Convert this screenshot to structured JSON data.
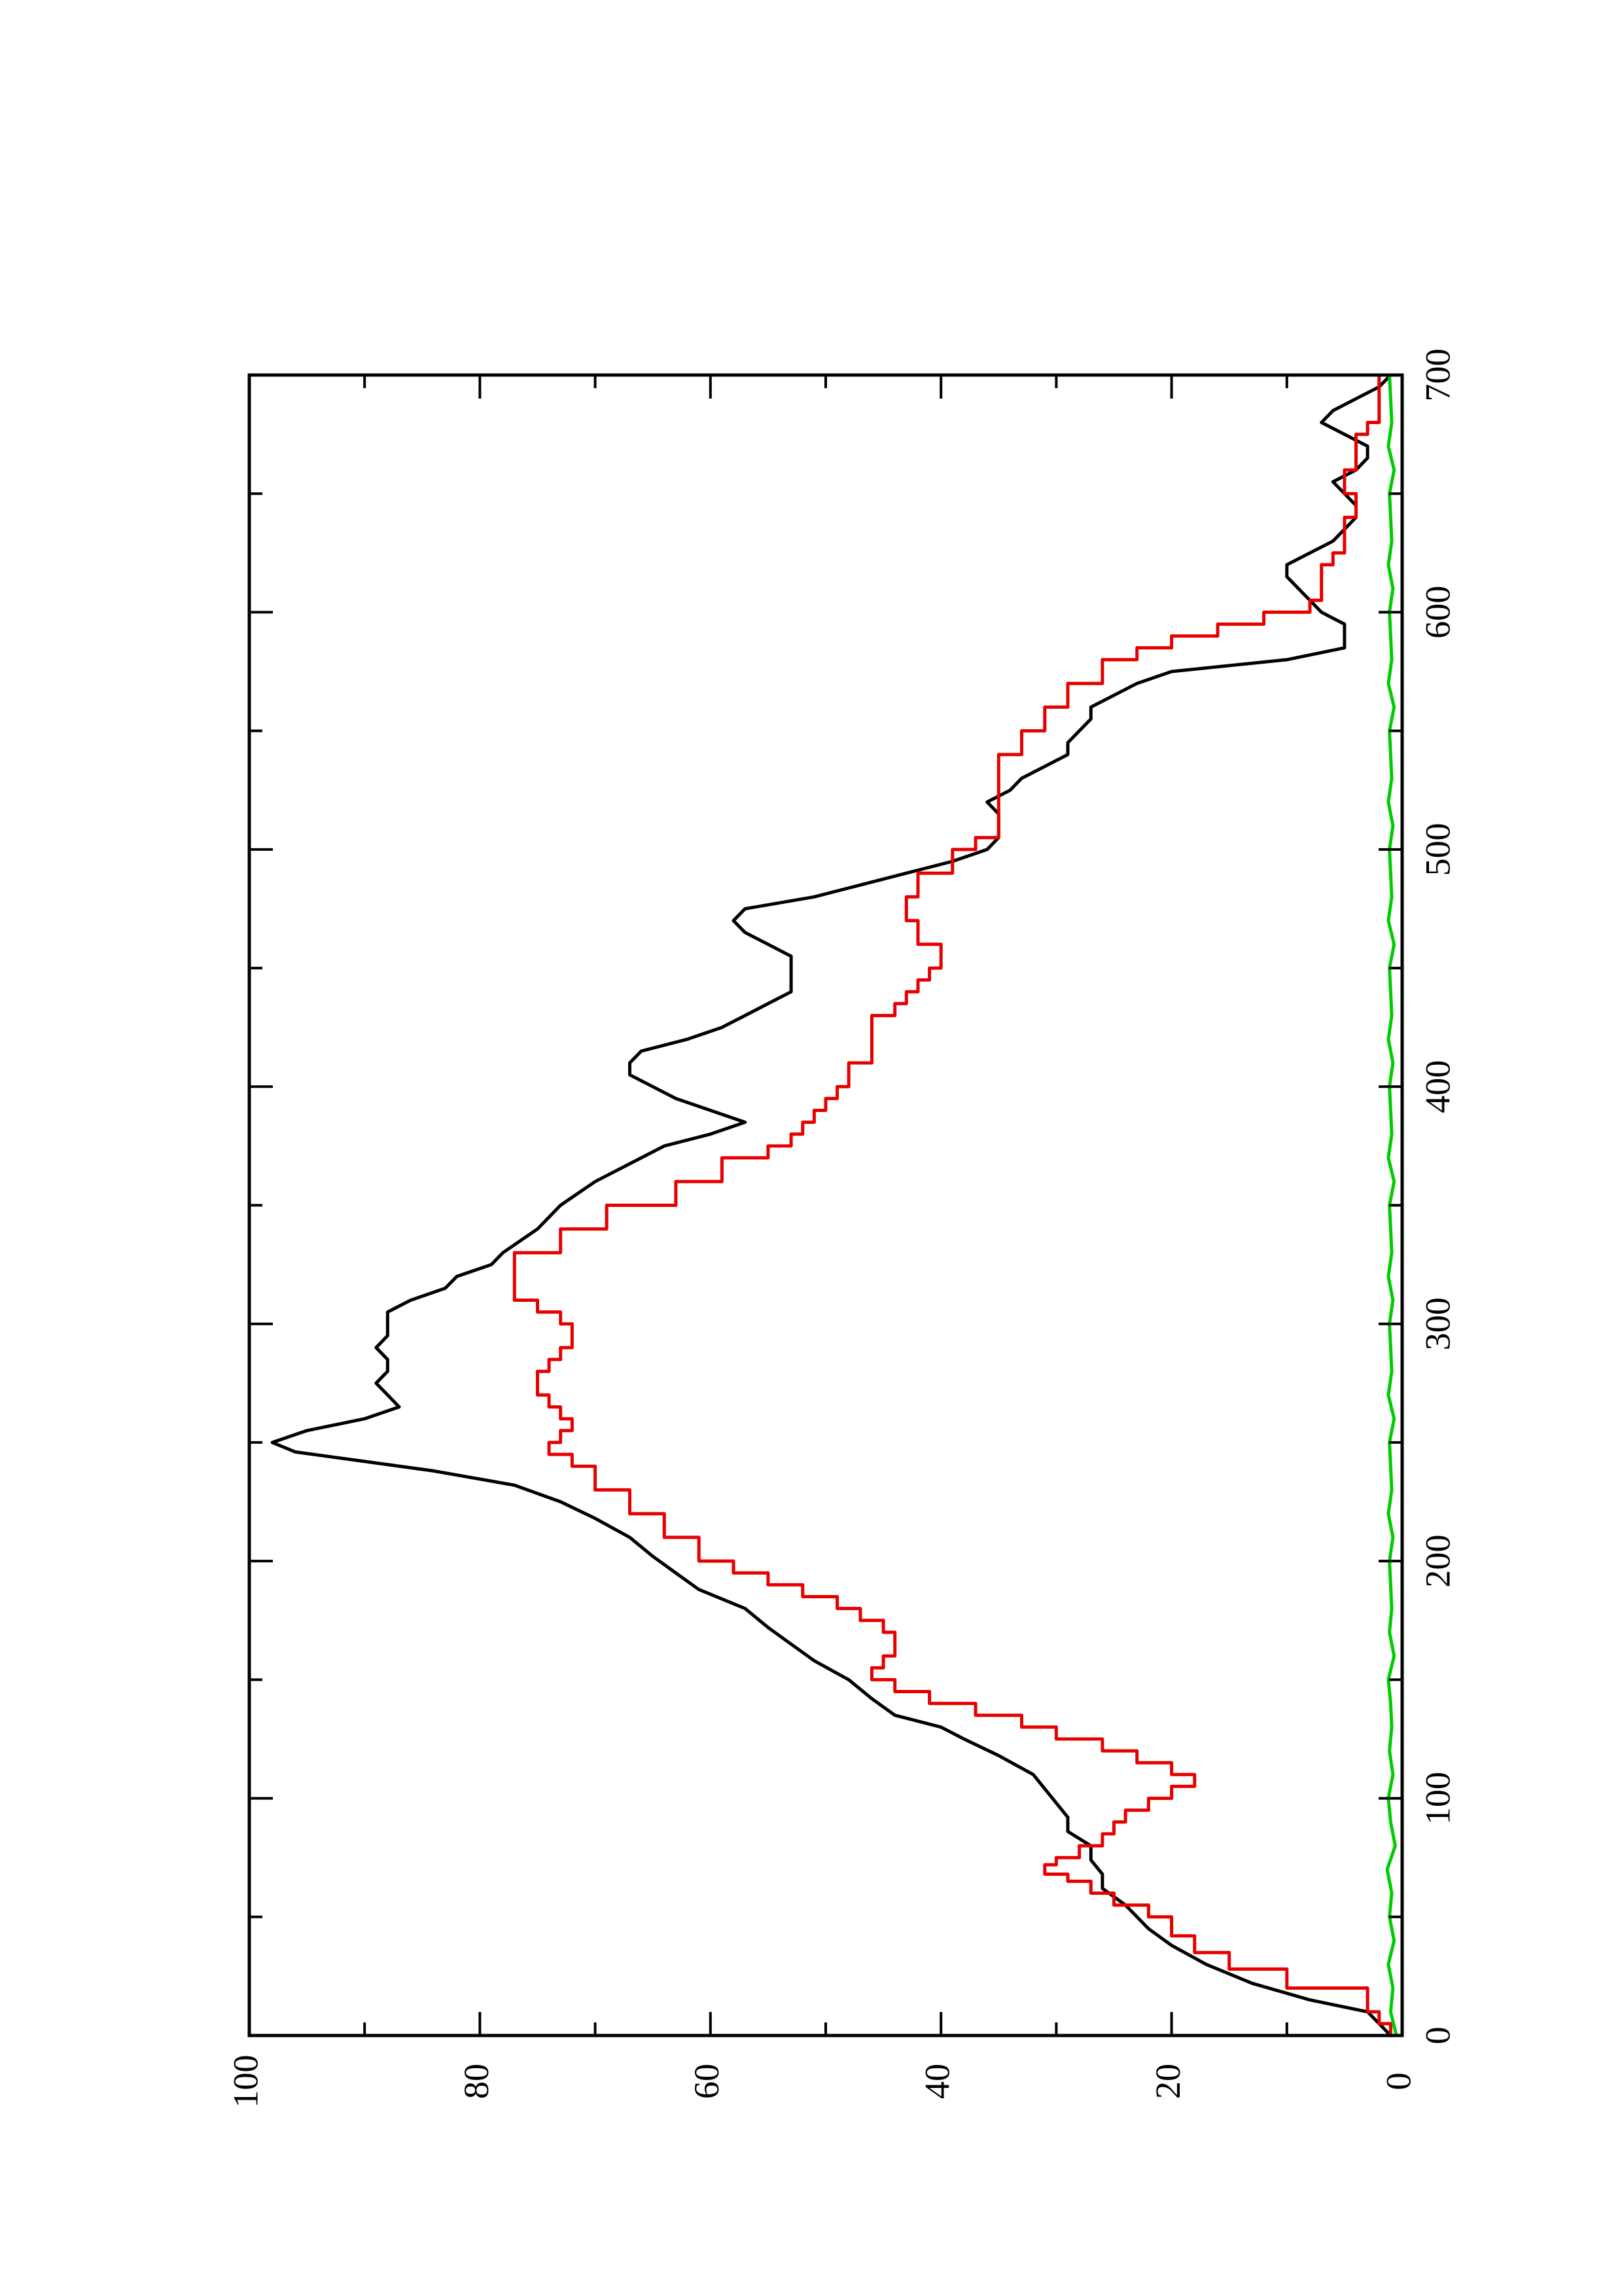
{
  "chart_data": {
    "type": "line",
    "orientation": "rotated 90 degrees counter-clockwise (x axis runs bottom to top on the page)",
    "title": "",
    "xlabel": "",
    "ylabel": "",
    "xlim": [
      0,
      700
    ],
    "ylim": [
      0,
      100
    ],
    "x_ticks": {
      "major": [
        0,
        100,
        200,
        300,
        400,
        500,
        600,
        700
      ],
      "minor": [
        50,
        150,
        250,
        350,
        450,
        550,
        650
      ],
      "labels": [
        "0",
        "100",
        "200",
        "300",
        "400",
        "500",
        "600",
        "700"
      ]
    },
    "y_ticks": {
      "major": [
        0,
        20,
        40,
        60,
        80,
        100
      ],
      "minor": [
        10,
        30,
        50,
        70,
        90
      ],
      "labels": [
        "0",
        "20",
        "40",
        "60",
        "80",
        "100"
      ]
    },
    "grid": false,
    "legend": "none",
    "series": [
      {
        "color": "#000000",
        "style": "smooth",
        "x": [
          0,
          5,
          10,
          15,
          22,
          30,
          38,
          45,
          55,
          62,
          68,
          74,
          80,
          86,
          92,
          98,
          104,
          110,
          118,
          125,
          130,
          135,
          142,
          150,
          158,
          165,
          172,
          180,
          188,
          195,
          202,
          210,
          218,
          225,
          232,
          238,
          242,
          246,
          250,
          255,
          260,
          265,
          270,
          275,
          280,
          285,
          290,
          295,
          300,
          305,
          310,
          315,
          320,
          325,
          330,
          340,
          350,
          360,
          370,
          375,
          380,
          385,
          390,
          395,
          400,
          405,
          410,
          415,
          420,
          425,
          430,
          435,
          440,
          445,
          450,
          455,
          460,
          465,
          470,
          475,
          480,
          485,
          490,
          495,
          500,
          505,
          510,
          515,
          520,
          525,
          530,
          535,
          540,
          545,
          550,
          555,
          560,
          565,
          570,
          575,
          580,
          585,
          590,
          595,
          600,
          605,
          610,
          615,
          620,
          625,
          630,
          635,
          640,
          645,
          650,
          655,
          660,
          665,
          670,
          675,
          680,
          685,
          690,
          695,
          700
        ],
        "y": [
          1,
          2,
          3,
          8,
          13,
          17,
          20,
          22,
          24,
          26,
          26,
          27,
          27,
          29,
          29,
          30,
          31,
          32,
          35,
          38,
          40,
          44,
          46,
          48,
          51,
          53,
          55,
          57,
          61,
          63,
          65,
          67,
          70,
          73,
          77,
          84,
          90,
          96,
          98,
          95,
          90,
          87,
          88,
          89,
          88,
          88,
          89,
          88,
          88,
          88,
          86,
          83,
          82,
          79,
          78,
          75,
          73,
          70,
          66,
          64,
          60,
          57,
          60,
          63,
          65,
          67,
          67,
          66,
          62,
          59,
          57,
          55,
          53,
          53,
          53,
          53,
          55,
          57,
          58,
          57,
          51,
          47,
          43,
          39,
          36,
          35,
          35,
          35,
          36,
          34,
          33,
          31,
          29,
          29,
          28,
          27,
          27,
          25,
          23,
          20,
          10,
          5,
          5,
          5,
          7,
          8,
          9,
          10,
          10,
          8,
          6,
          5,
          4,
          4,
          5,
          6,
          4,
          3,
          3,
          5,
          7,
          6,
          4,
          2,
          1
        ]
      },
      {
        "color": "#e60000",
        "style": "stepped",
        "x": [
          0,
          5,
          10,
          20,
          28,
          35,
          42,
          50,
          55,
          60,
          65,
          68,
          72,
          75,
          80,
          85,
          90,
          95,
          100,
          105,
          110,
          115,
          120,
          125,
          130,
          135,
          140,
          145,
          150,
          155,
          160,
          165,
          170,
          175,
          180,
          185,
          190,
          195,
          200,
          210,
          220,
          230,
          240,
          245,
          250,
          255,
          260,
          265,
          270,
          275,
          280,
          285,
          290,
          295,
          300,
          305,
          310,
          320,
          330,
          340,
          350,
          360,
          370,
          375,
          380,
          385,
          390,
          395,
          400,
          410,
          420,
          430,
          435,
          440,
          445,
          450,
          455,
          460,
          470,
          480,
          490,
          500,
          505,
          510,
          515,
          520,
          530,
          540,
          550,
          560,
          570,
          580,
          585,
          590,
          595,
          600,
          605,
          610,
          615,
          620,
          625,
          630,
          640,
          645,
          650,
          655,
          660,
          670,
          675,
          680,
          690,
          700
        ],
        "y": [
          1,
          2,
          3,
          10,
          15,
          18,
          20,
          22,
          25,
          27,
          29,
          31,
          30,
          28,
          26,
          25,
          24,
          22,
          20,
          18,
          20,
          23,
          26,
          30,
          33,
          37,
          41,
          44,
          46,
          45,
          44,
          44,
          45,
          47,
          49,
          52,
          55,
          58,
          61,
          64,
          67,
          70,
          72,
          74,
          73,
          72,
          73,
          74,
          75,
          75,
          74,
          73,
          72,
          72,
          73,
          75,
          77,
          77,
          73,
          69,
          63,
          59,
          55,
          53,
          52,
          51,
          50,
          49,
          48,
          46,
          46,
          44,
          43,
          42,
          41,
          40,
          40,
          42,
          43,
          42,
          39,
          37,
          35,
          35,
          35,
          35,
          35,
          33,
          31,
          29,
          26,
          23,
          20,
          16,
          12,
          8,
          7,
          7,
          7,
          6,
          5,
          5,
          4,
          4,
          5,
          5,
          4,
          4,
          3,
          2,
          2,
          1
        ]
      },
      {
        "color": "#00cc00",
        "style": "noisy",
        "x": [
          0,
          10,
          20,
          30,
          40,
          50,
          60,
          70,
          80,
          90,
          100,
          110,
          120,
          130,
          140,
          150,
          160,
          170,
          180,
          190,
          200,
          210,
          220,
          230,
          240,
          250,
          260,
          270,
          280,
          290,
          300,
          310,
          320,
          330,
          340,
          350,
          360,
          370,
          380,
          390,
          400,
          410,
          420,
          430,
          440,
          450,
          460,
          470,
          480,
          490,
          500,
          510,
          520,
          530,
          540,
          550,
          560,
          570,
          580,
          590,
          600,
          610,
          620,
          630,
          640,
          650,
          660,
          670,
          680,
          690,
          700
        ],
        "y": [
          0.5,
          1.0,
          0.8,
          1.2,
          0.7,
          1.1,
          0.9,
          1.3,
          0.6,
          1.0,
          1.2,
          0.8,
          1.1,
          0.9,
          1.0,
          1.2,
          0.7,
          1.1,
          0.9,
          1.0,
          1.1,
          0.8,
          1.2,
          0.9,
          1.0,
          1.1,
          0.7,
          1.2,
          0.9,
          1.0,
          1.1,
          0.8,
          1.2,
          0.9,
          1.0,
          1.1,
          0.7,
          1.2,
          0.9,
          1.0,
          1.1,
          0.8,
          1.2,
          0.9,
          1.0,
          1.1,
          0.7,
          1.2,
          0.9,
          1.0,
          1.1,
          0.8,
          1.2,
          0.9,
          1.0,
          1.1,
          0.7,
          1.2,
          0.9,
          1.0,
          1.1,
          0.8,
          1.2,
          0.9,
          1.0,
          1.1,
          0.7,
          1.2,
          0.9,
          1.0,
          1.1
        ]
      }
    ]
  }
}
